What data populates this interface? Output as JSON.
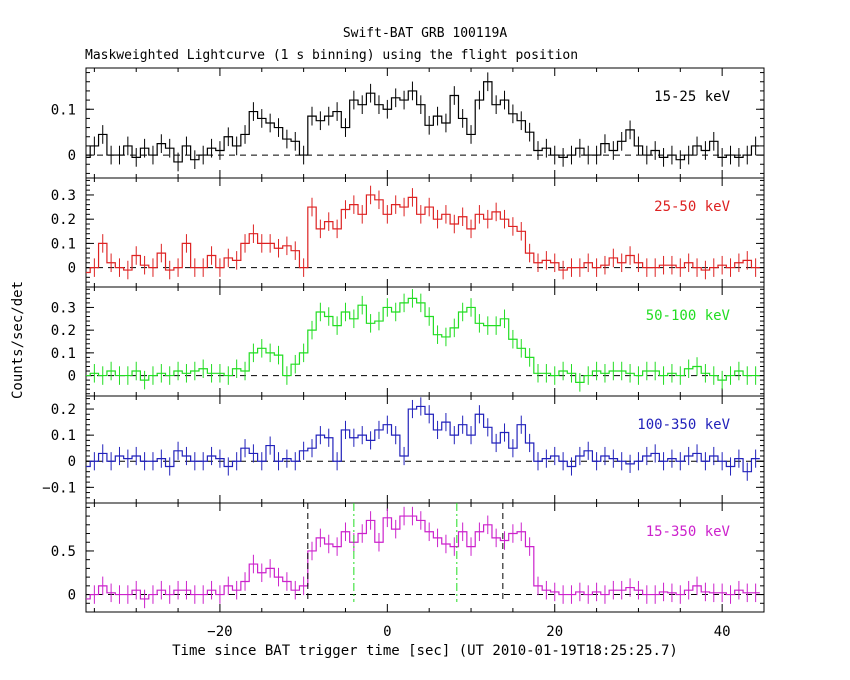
{
  "chart_data": {
    "type": "line",
    "title": "Swift-BAT GRB 100119A",
    "subtitle": "Maskweighted Lightcurve (1 s binning) using the flight position",
    "xlabel": "Time since BAT trigger time [sec] (UT 2010-01-19T18:25:25.7)",
    "ylabel": "Counts/sec/det",
    "xlim": [
      -36,
      45
    ],
    "x_ticks": [
      -20,
      0,
      20,
      40
    ],
    "markers": {
      "black_dashed": [
        -9.5,
        13.8
      ],
      "green_dashdot": [
        -4.0,
        8.3
      ]
    },
    "x": [
      -36,
      -35,
      -34,
      -33,
      -32,
      -31,
      -30,
      -29,
      -28,
      -27,
      -26,
      -25,
      -24,
      -23,
      -22,
      -21,
      -20,
      -19,
      -18,
      -17,
      -16,
      -15,
      -14,
      -13,
      -12,
      -11,
      -10,
      -9,
      -8,
      -7,
      -6,
      -5,
      -4,
      -3,
      -2,
      -1,
      0,
      1,
      2,
      3,
      4,
      5,
      6,
      7,
      8,
      9,
      10,
      11,
      12,
      13,
      14,
      15,
      16,
      17,
      18,
      19,
      20,
      21,
      22,
      23,
      24,
      25,
      26,
      27,
      28,
      29,
      30,
      31,
      32,
      33,
      34,
      35,
      36,
      37,
      38,
      39,
      40,
      41,
      42,
      43,
      44
    ],
    "series": [
      {
        "name": "15-25 keV",
        "color": "#000000",
        "ylim": [
          -0.05,
          0.19
        ],
        "y_ticks": [
          0,
          0.1
        ],
        "y_tick_labels": [
          "0",
          "0.1"
        ],
        "values": [
          -0.005,
          0.02,
          0.045,
          0.0,
          0.0,
          0.02,
          -0.005,
          0.015,
          0.0,
          0.025,
          0.015,
          -0.015,
          0.02,
          -0.01,
          0.0,
          0.015,
          0.01,
          0.04,
          0.02,
          0.045,
          0.095,
          0.08,
          0.07,
          0.06,
          0.035,
          0.03,
          0.0,
          0.085,
          0.075,
          0.085,
          0.095,
          0.06,
          0.12,
          0.11,
          0.135,
          0.11,
          0.1,
          0.125,
          0.12,
          0.14,
          0.11,
          0.065,
          0.085,
          0.07,
          0.13,
          0.08,
          0.045,
          0.12,
          0.16,
          0.11,
          0.12,
          0.09,
          0.075,
          0.05,
          0.01,
          0.015,
          0.0,
          -0.005,
          0.0,
          0.015,
          0.0,
          0.0,
          0.025,
          0.01,
          0.03,
          0.055,
          0.02,
          0.0,
          0.01,
          -0.005,
          0.0,
          -0.01,
          0.0,
          0.02,
          0.01,
          0.03,
          -0.005,
          0.0,
          -0.005,
          0.0,
          0.02
        ]
      },
      {
        "name": "25-50 keV",
        "color": "#dd2222",
        "ylim": [
          -0.08,
          0.37
        ],
        "y_ticks": [
          0,
          0.1,
          0.2,
          0.3
        ],
        "y_tick_labels": [
          "0",
          "0.1",
          "0.2",
          "0.3"
        ],
        "values": [
          -0.02,
          0.0,
          0.1,
          0.02,
          0.0,
          -0.01,
          0.05,
          0.01,
          0.0,
          0.06,
          -0.01,
          0.0,
          0.1,
          0.0,
          0.0,
          0.05,
          0.0,
          0.04,
          0.03,
          0.1,
          0.14,
          0.1,
          0.1,
          0.08,
          0.09,
          0.07,
          0.0,
          0.25,
          0.16,
          0.19,
          0.16,
          0.24,
          0.26,
          0.22,
          0.3,
          0.28,
          0.22,
          0.26,
          0.25,
          0.29,
          0.22,
          0.25,
          0.2,
          0.22,
          0.18,
          0.21,
          0.16,
          0.22,
          0.2,
          0.23,
          0.2,
          0.17,
          0.15,
          0.06,
          0.02,
          0.03,
          0.02,
          -0.01,
          0.0,
          0.0,
          0.02,
          0.0,
          0.01,
          0.04,
          0.02,
          0.05,
          0.02,
          0.0,
          0.0,
          0.01,
          0.01,
          0.0,
          0.02,
          0.0,
          -0.01,
          0.0,
          0.01,
          0.0,
          0.02,
          0.03,
          0.0
        ]
      },
      {
        "name": "50-100 keV",
        "color": "#22dd22",
        "ylim": [
          -0.09,
          0.39
        ],
        "y_ticks": [
          0,
          0.1,
          0.2,
          0.3
        ],
        "y_tick_labels": [
          "0",
          "0.1",
          "0.2",
          "0.3"
        ],
        "values": [
          0.0,
          0.01,
          0.0,
          0.02,
          0.0,
          0.0,
          0.02,
          -0.02,
          0.0,
          0.01,
          0.0,
          0.02,
          0.01,
          0.02,
          0.03,
          0.01,
          0.01,
          0.0,
          0.03,
          0.02,
          0.1,
          0.12,
          0.1,
          0.09,
          0.0,
          0.05,
          0.1,
          0.2,
          0.28,
          0.26,
          0.22,
          0.28,
          0.25,
          0.31,
          0.23,
          0.24,
          0.3,
          0.28,
          0.32,
          0.34,
          0.32,
          0.26,
          0.18,
          0.17,
          0.21,
          0.28,
          0.3,
          0.23,
          0.22,
          0.22,
          0.25,
          0.16,
          0.12,
          0.08,
          0.01,
          0.01,
          0.0,
          0.02,
          0.01,
          -0.03,
          0.0,
          0.02,
          0.01,
          0.02,
          0.02,
          0.01,
          0.0,
          0.02,
          0.02,
          0.0,
          0.01,
          0.0,
          0.03,
          0.04,
          0.01,
          0.0,
          -0.02,
          0.0,
          0.02,
          0.0,
          0.0
        ]
      },
      {
        "name": "100-350 keV",
        "color": "#2222bb",
        "ylim": [
          -0.16,
          0.25
        ],
        "y_ticks": [
          -0.1,
          0,
          0.1,
          0.2
        ],
        "y_tick_labels": [
          "−0.1",
          "0",
          "0.1",
          "0.2"
        ],
        "values": [
          -0.02,
          0.0,
          0.03,
          0.0,
          0.02,
          0.01,
          0.02,
          0.0,
          0.0,
          0.01,
          -0.02,
          0.04,
          0.02,
          0.0,
          0.0,
          0.02,
          0.01,
          -0.02,
          0.0,
          0.05,
          0.03,
          0.0,
          0.06,
          0.0,
          0.01,
          0.0,
          0.04,
          0.05,
          0.1,
          0.09,
          0.0,
          0.12,
          0.09,
          0.1,
          0.08,
          0.12,
          0.14,
          0.1,
          0.02,
          0.2,
          0.21,
          0.18,
          0.12,
          0.15,
          0.1,
          0.14,
          0.1,
          0.18,
          0.13,
          0.07,
          0.11,
          0.05,
          0.14,
          0.07,
          0.0,
          0.01,
          0.02,
          0.0,
          -0.02,
          0.02,
          0.04,
          0.0,
          0.02,
          0.01,
          0.0,
          -0.01,
          0.0,
          0.02,
          0.03,
          0.0,
          0.01,
          0.0,
          0.02,
          0.03,
          0.0,
          0.02,
          0.0,
          -0.02,
          0.01,
          -0.04,
          0.01
        ]
      },
      {
        "name": "15-350 keV",
        "color": "#cc22cc",
        "ylim": [
          -0.2,
          1.05
        ],
        "y_ticks": [
          0,
          0.5
        ],
        "y_tick_labels": [
          "0",
          "0.5"
        ],
        "values": [
          -0.05,
          0.0,
          0.1,
          0.02,
          0.0,
          0.0,
          0.05,
          -0.05,
          0.0,
          0.05,
          0.0,
          0.05,
          0.05,
          0.0,
          0.0,
          0.05,
          0.0,
          0.1,
          0.05,
          0.15,
          0.35,
          0.25,
          0.3,
          0.2,
          0.15,
          0.05,
          0.1,
          0.5,
          0.65,
          0.58,
          0.55,
          0.72,
          0.6,
          0.7,
          0.85,
          0.6,
          0.88,
          0.75,
          0.9,
          0.9,
          0.85,
          0.72,
          0.65,
          0.58,
          0.55,
          0.72,
          0.55,
          0.72,
          0.8,
          0.65,
          0.62,
          0.7,
          0.72,
          0.55,
          0.1,
          0.05,
          0.03,
          0.0,
          0.0,
          0.03,
          0.0,
          0.03,
          0.0,
          0.05,
          0.05,
          0.08,
          0.05,
          0.0,
          0.0,
          0.03,
          0.02,
          0.0,
          0.05,
          0.1,
          0.03,
          0.02,
          0.02,
          0.0,
          0.05,
          0.02,
          0.02
        ]
      }
    ]
  }
}
